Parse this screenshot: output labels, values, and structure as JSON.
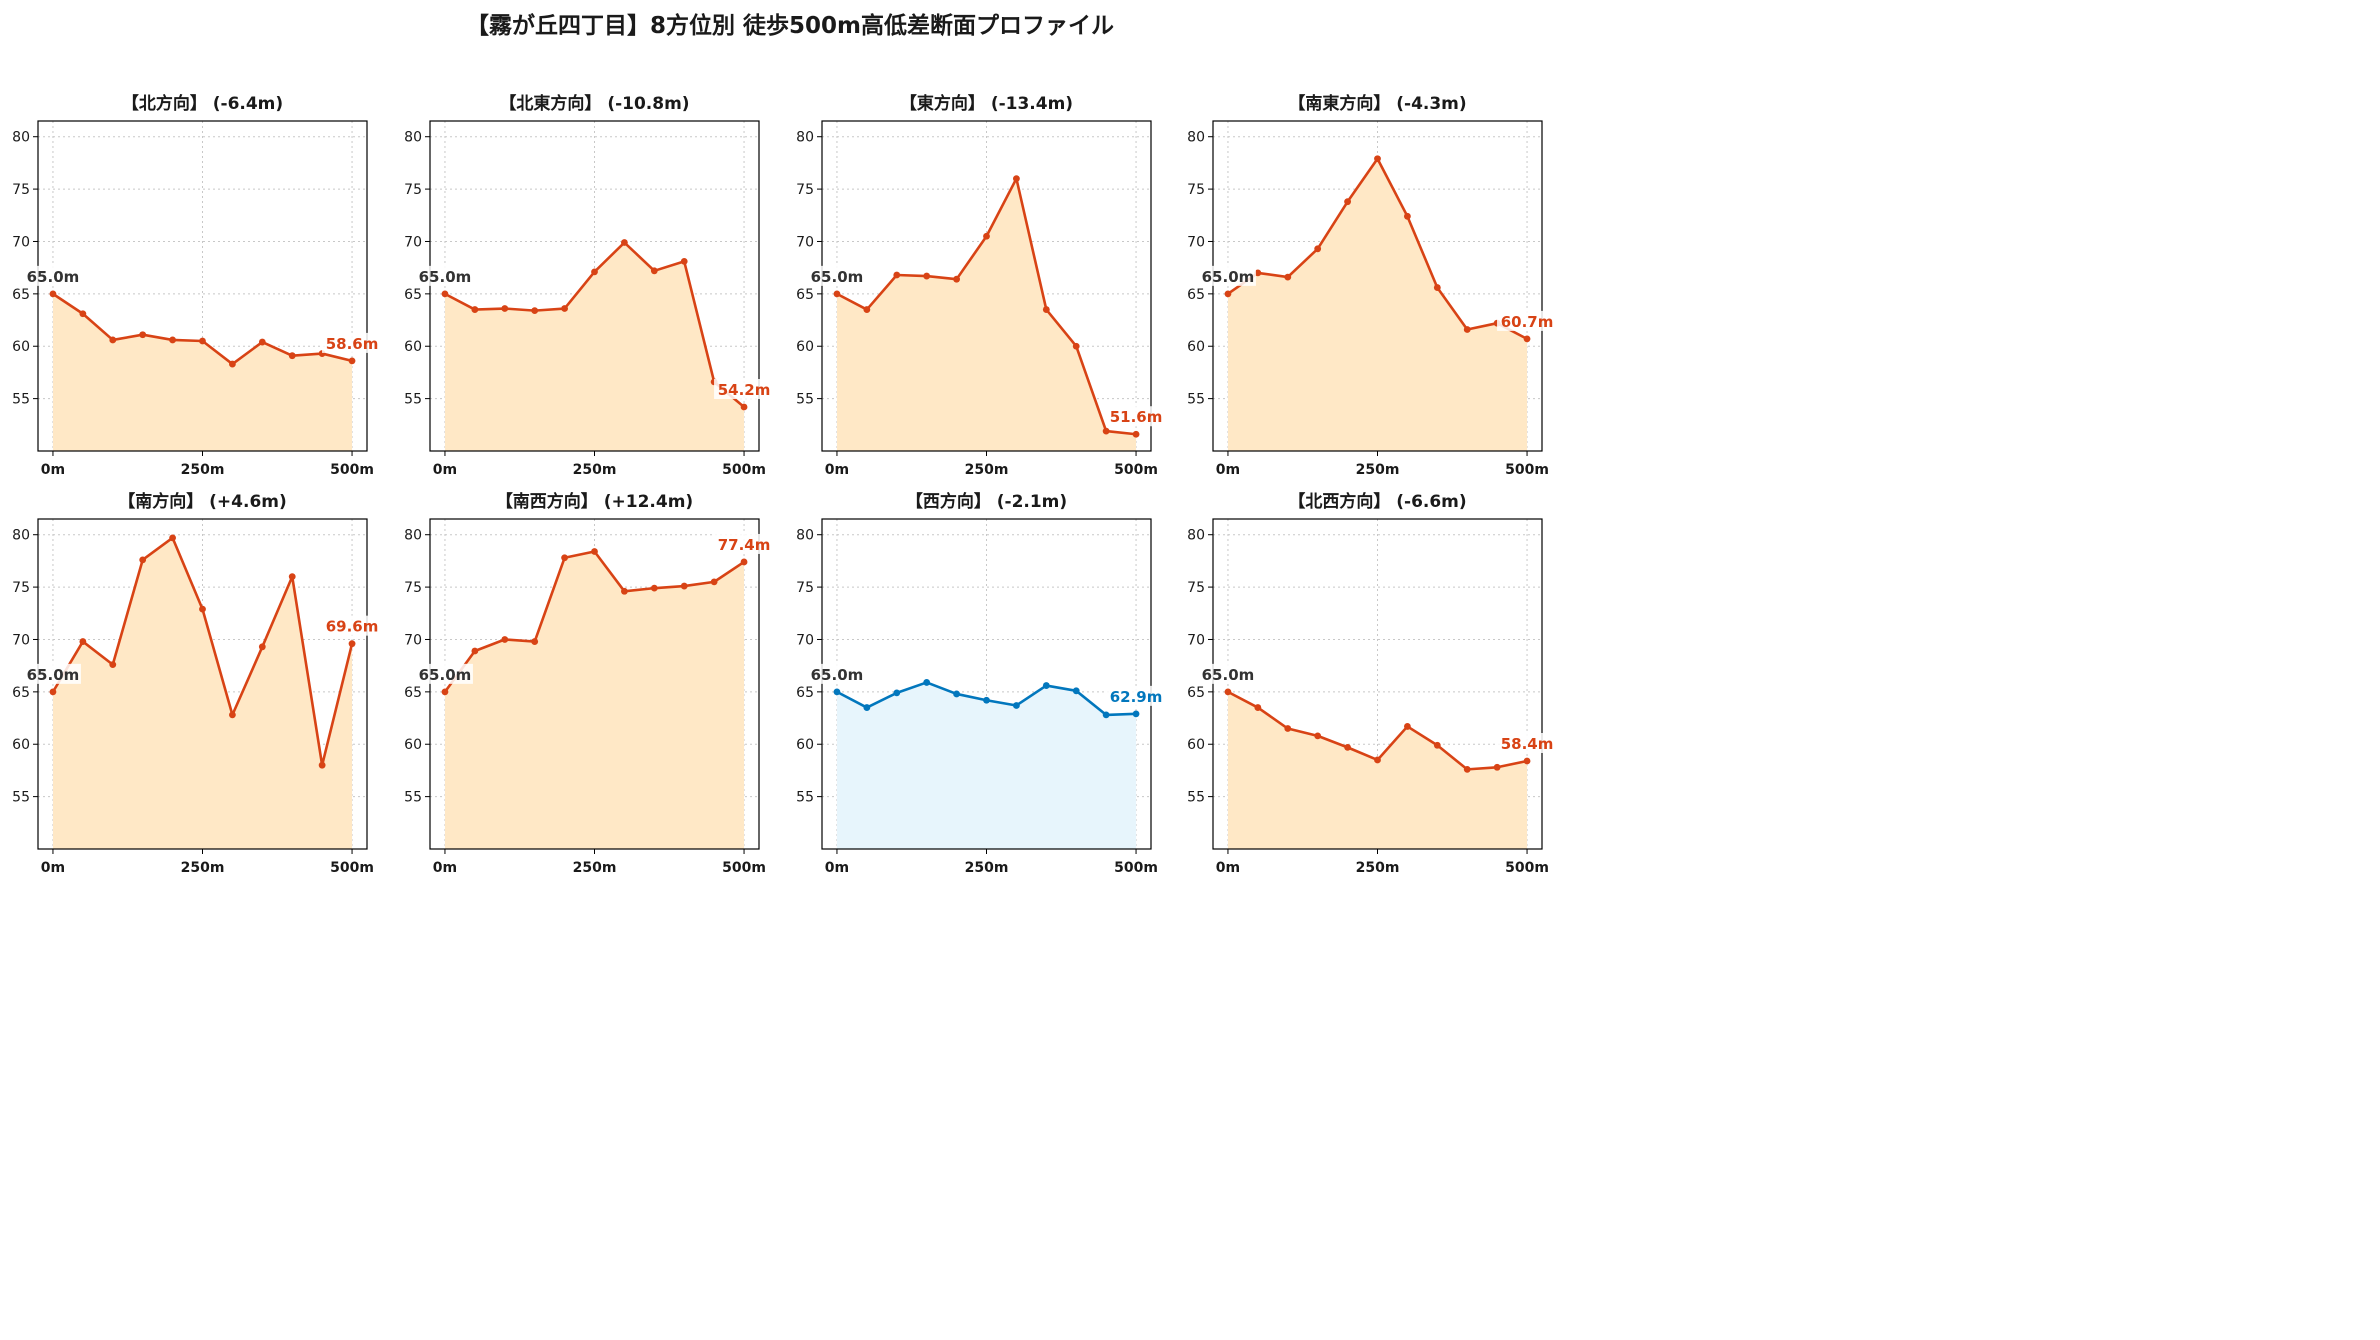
{
  "title": "【霧が丘四丁目】8方位別 徒歩500m高低差断面プロファイル",
  "colors": {
    "down_line": "#d84315",
    "down_fill": "#ffe8c6",
    "up_line": "#d84315",
    "up_fill": "#ffe8c6",
    "flat_line": "#0277bd",
    "flat_fill": "#e7f5fc",
    "start_label": "#333333"
  },
  "chart_data": [
    {
      "type": "area",
      "title": "【北方向】 (-6.4m)",
      "x": [
        0,
        50,
        100,
        150,
        200,
        250,
        300,
        350,
        400,
        450,
        500
      ],
      "y": [
        65.0,
        63.1,
        60.6,
        61.1,
        60.6,
        60.5,
        58.3,
        60.4,
        59.1,
        59.3,
        58.6
      ],
      "xticks": [
        "0m",
        "250m",
        "500m"
      ],
      "yticks": [
        55,
        60,
        65,
        70,
        75,
        80
      ],
      "ylim": [
        50,
        81.5
      ],
      "start_label": "65.0m",
      "end_label": "58.6m",
      "theme": "down",
      "grid": true
    },
    {
      "type": "area",
      "title": "【北東方向】 (-10.8m)",
      "x": [
        0,
        50,
        100,
        150,
        200,
        250,
        300,
        350,
        400,
        450,
        500
      ],
      "y": [
        65.0,
        63.5,
        63.6,
        63.4,
        63.6,
        67.1,
        69.9,
        67.2,
        68.1,
        56.6,
        54.2
      ],
      "xticks": [
        "0m",
        "250m",
        "500m"
      ],
      "yticks": [
        55,
        60,
        65,
        70,
        75,
        80
      ],
      "ylim": [
        50,
        81.5
      ],
      "start_label": "65.0m",
      "end_label": "54.2m",
      "theme": "down",
      "grid": true
    },
    {
      "type": "area",
      "title": "【東方向】 (-13.4m)",
      "x": [
        0,
        50,
        100,
        150,
        200,
        250,
        300,
        350,
        400,
        450,
        500
      ],
      "y": [
        65.0,
        63.5,
        66.8,
        66.7,
        66.4,
        70.5,
        76.0,
        63.5,
        60.0,
        51.9,
        51.6
      ],
      "xticks": [
        "0m",
        "250m",
        "500m"
      ],
      "yticks": [
        55,
        60,
        65,
        70,
        75,
        80
      ],
      "ylim": [
        50,
        81.5
      ],
      "start_label": "65.0m",
      "end_label": "51.6m",
      "theme": "down",
      "grid": true
    },
    {
      "type": "area",
      "title": "【南東方向】 (-4.3m)",
      "x": [
        0,
        50,
        100,
        150,
        200,
        250,
        300,
        350,
        400,
        450,
        500
      ],
      "y": [
        65.0,
        67.0,
        66.6,
        69.3,
        73.8,
        77.9,
        72.4,
        65.6,
        61.6,
        62.2,
        60.7
      ],
      "xticks": [
        "0m",
        "250m",
        "500m"
      ],
      "yticks": [
        55,
        60,
        65,
        70,
        75,
        80
      ],
      "ylim": [
        50,
        81.5
      ],
      "start_label": "65.0m",
      "end_label": "60.7m",
      "theme": "down",
      "grid": true
    },
    {
      "type": "area",
      "title": "【南方向】 (+4.6m)",
      "x": [
        0,
        50,
        100,
        150,
        200,
        250,
        300,
        350,
        400,
        450,
        500
      ],
      "y": [
        65.0,
        69.8,
        67.6,
        77.6,
        79.7,
        72.9,
        62.8,
        69.3,
        76.0,
        58.0,
        69.6
      ],
      "xticks": [
        "0m",
        "250m",
        "500m"
      ],
      "yticks": [
        55,
        60,
        65,
        70,
        75,
        80
      ],
      "ylim": [
        50,
        81.5
      ],
      "start_label": "65.0m",
      "end_label": "69.6m",
      "theme": "up",
      "grid": true
    },
    {
      "type": "area",
      "title": "【南西方向】 (+12.4m)",
      "x": [
        0,
        50,
        100,
        150,
        200,
        250,
        300,
        350,
        400,
        450,
        500
      ],
      "y": [
        65.0,
        68.9,
        70.0,
        69.8,
        77.8,
        78.4,
        74.6,
        74.9,
        75.1,
        75.5,
        77.4
      ],
      "xticks": [
        "0m",
        "250m",
        "500m"
      ],
      "yticks": [
        55,
        60,
        65,
        70,
        75,
        80
      ],
      "ylim": [
        50,
        81.5
      ],
      "start_label": "65.0m",
      "end_label": "77.4m",
      "theme": "up",
      "grid": true
    },
    {
      "type": "area",
      "title": "【西方向】 (-2.1m)",
      "x": [
        0,
        50,
        100,
        150,
        200,
        250,
        300,
        350,
        400,
        450,
        500
      ],
      "y": [
        65.0,
        63.5,
        64.9,
        65.9,
        64.8,
        64.2,
        63.7,
        65.6,
        65.1,
        62.8,
        62.9
      ],
      "xticks": [
        "0m",
        "250m",
        "500m"
      ],
      "yticks": [
        55,
        60,
        65,
        70,
        75,
        80
      ],
      "ylim": [
        50,
        81.5
      ],
      "start_label": "65.0m",
      "end_label": "62.9m",
      "theme": "flat",
      "grid": true
    },
    {
      "type": "area",
      "title": "【北西方向】 (-6.6m)",
      "x": [
        0,
        50,
        100,
        150,
        200,
        250,
        300,
        350,
        400,
        450,
        500
      ],
      "y": [
        65.0,
        63.5,
        61.5,
        60.8,
        59.7,
        58.5,
        61.7,
        59.9,
        57.6,
        57.8,
        58.4
      ],
      "xticks": [
        "0m",
        "250m",
        "500m"
      ],
      "yticks": [
        55,
        60,
        65,
        70,
        75,
        80
      ],
      "ylim": [
        50,
        81.5
      ],
      "start_label": "65.0m",
      "end_label": "58.4m",
      "theme": "down",
      "grid": true
    }
  ]
}
